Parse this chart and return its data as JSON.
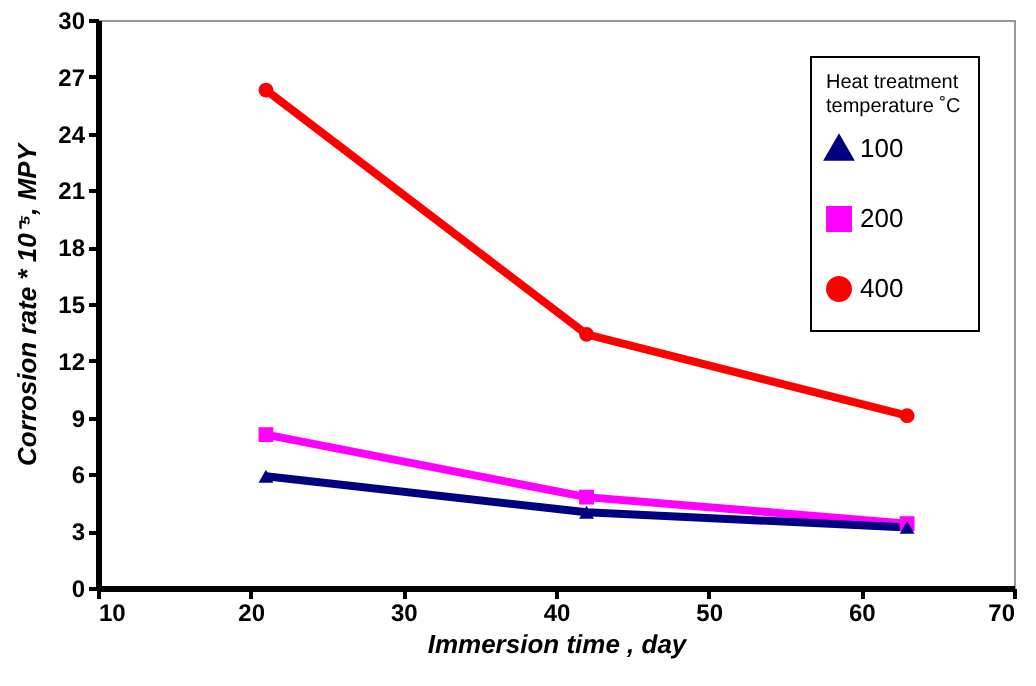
{
  "chart_data": {
    "type": "line",
    "xlabel": "Immersion time , day",
    "ylabel": "Corrosion rate * 10⁻⁵, MPY",
    "legend_title": "Heat treatment temperature ˚C",
    "legend": "top right",
    "grid": false,
    "xlim": [
      10,
      70
    ],
    "xticks": [
      10,
      20,
      30,
      40,
      50,
      60,
      70
    ],
    "ylim": [
      0,
      30
    ],
    "yticks": [
      0,
      3,
      6,
      9,
      12,
      15,
      18,
      21,
      24,
      27,
      30
    ],
    "series": [
      {
        "name": "100",
        "color": "#000080",
        "marker": "triangle",
        "x": [
          21,
          42,
          63
        ],
        "values": [
          5.9,
          4.0,
          3.2
        ]
      },
      {
        "name": "200",
        "color": "#ff00ff",
        "marker": "square",
        "x": [
          21,
          42,
          63
        ],
        "values": [
          8.1,
          4.8,
          3.4
        ]
      },
      {
        "name": "400",
        "color": "#ff0000",
        "marker": "circle",
        "x": [
          21,
          42,
          63
        ],
        "values": [
          26.3,
          13.4,
          9.1
        ]
      }
    ]
  }
}
